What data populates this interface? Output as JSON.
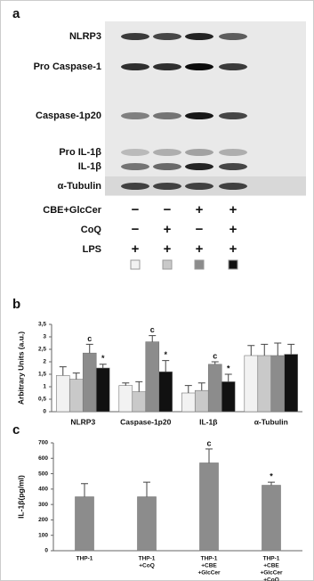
{
  "panel_labels": [
    "a",
    "b",
    "c"
  ],
  "blot": {
    "rows": [
      "NLRP3",
      "Pro Caspase-1",
      "Caspase-1p20",
      "Pro IL-1β",
      "IL-1β",
      "α-Tubulin"
    ],
    "treatments": [
      {
        "label": "CBE+GlcCer",
        "signs": [
          "−",
          "−",
          "+",
          "+"
        ]
      },
      {
        "label": "CoQ",
        "signs": [
          "−",
          "+",
          "−",
          "+"
        ]
      },
      {
        "label": "LPS",
        "signs": [
          "+",
          "+",
          "+",
          "+"
        ]
      }
    ]
  },
  "chart_data": [
    {
      "type": "bar",
      "y_label": "Arbitrary Units (a.u.)",
      "categories": [
        "NLRP3",
        "Caspase-1p20",
        "IL-1β",
        "α-Tubulin"
      ],
      "series": [
        {
          "color": "#f2f2f2",
          "values": [
            1.45,
            1.05,
            0.75,
            2.25
          ],
          "errors": [
            0.35,
            0.1,
            0.3,
            0.4
          ]
        },
        {
          "color": "#c9c9c9",
          "values": [
            1.3,
            0.8,
            0.85,
            2.25
          ],
          "errors": [
            0.25,
            0.4,
            0.3,
            0.45
          ]
        },
        {
          "color": "#8c8c8c",
          "values": [
            2.35,
            2.8,
            1.9,
            2.25
          ],
          "errors": [
            0.35,
            0.25,
            0.1,
            0.5
          ],
          "marks": [
            "c",
            "c",
            "c",
            null
          ]
        },
        {
          "color": "#111111",
          "values": [
            1.75,
            1.6,
            1.2,
            2.3
          ],
          "errors": [
            0.15,
            0.45,
            0.3,
            0.4
          ],
          "marks": [
            "*",
            "*",
            "*",
            null
          ]
        }
      ],
      "ylim": [
        0,
        3.5
      ],
      "yticks": [
        0,
        {
          "value": 0.5,
          "label": "0,5"
        },
        1,
        {
          "value": 1.5,
          "label": "1,5"
        },
        2,
        {
          "value": 2.5,
          "label": "2,5"
        },
        3,
        {
          "value": 3.5,
          "label": "3,5"
        }
      ]
    },
    {
      "type": "bar",
      "y_label": "IL-1β(pg/ml)",
      "categories": [
        [
          "THP-1"
        ],
        [
          "THP-1",
          "+CoQ"
        ],
        [
          "THP-1",
          "+CBE",
          "+GlcCer"
        ],
        [
          "THP-1",
          "+CBE",
          "+GlcCer",
          "+CoQ"
        ]
      ],
      "series": [
        {
          "color": "#8c8c8c",
          "values": [
            350,
            350,
            570,
            425
          ],
          "errors": [
            85,
            95,
            90,
            20
          ],
          "marks": [
            null,
            null,
            "c",
            "*"
          ]
        }
      ],
      "ylim": [
        0,
        700
      ],
      "yticks": [
        0,
        100,
        200,
        300,
        400,
        500,
        600,
        700
      ]
    }
  ]
}
